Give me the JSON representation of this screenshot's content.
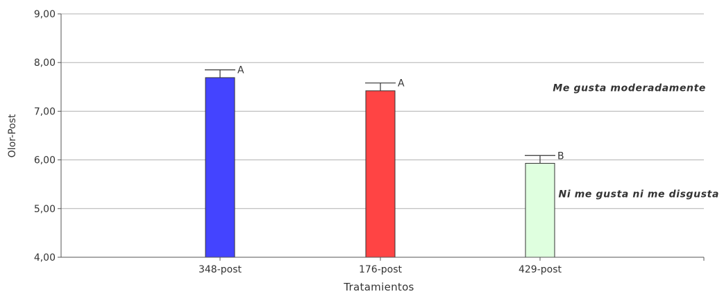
{
  "chart_data": {
    "type": "bar",
    "title": "",
    "xlabel": "Tratamientos",
    "ylabel": "Olor-Post",
    "ylim": [
      4.0,
      9.0
    ],
    "yticks": [
      "4,00",
      "5,00",
      "6,00",
      "7,00",
      "8,00",
      "9,00"
    ],
    "ytick_values": [
      4,
      5,
      6,
      7,
      8,
      9
    ],
    "grid": true,
    "categories": [
      "348-post",
      "176-post",
      "429-post"
    ],
    "values": [
      7.69,
      7.42,
      5.93
    ],
    "error": [
      0.16,
      0.16,
      0.16
    ],
    "letters": [
      "A",
      "A",
      "B"
    ],
    "colors": [
      "#4444ff",
      "#ff4444",
      "#dfffdf"
    ],
    "annotations": [
      {
        "text": "Me gusta moderadamente",
        "y": 7.48
      },
      {
        "text": "Ni me gusta ni me disgusta",
        "y": 5.3
      }
    ]
  }
}
